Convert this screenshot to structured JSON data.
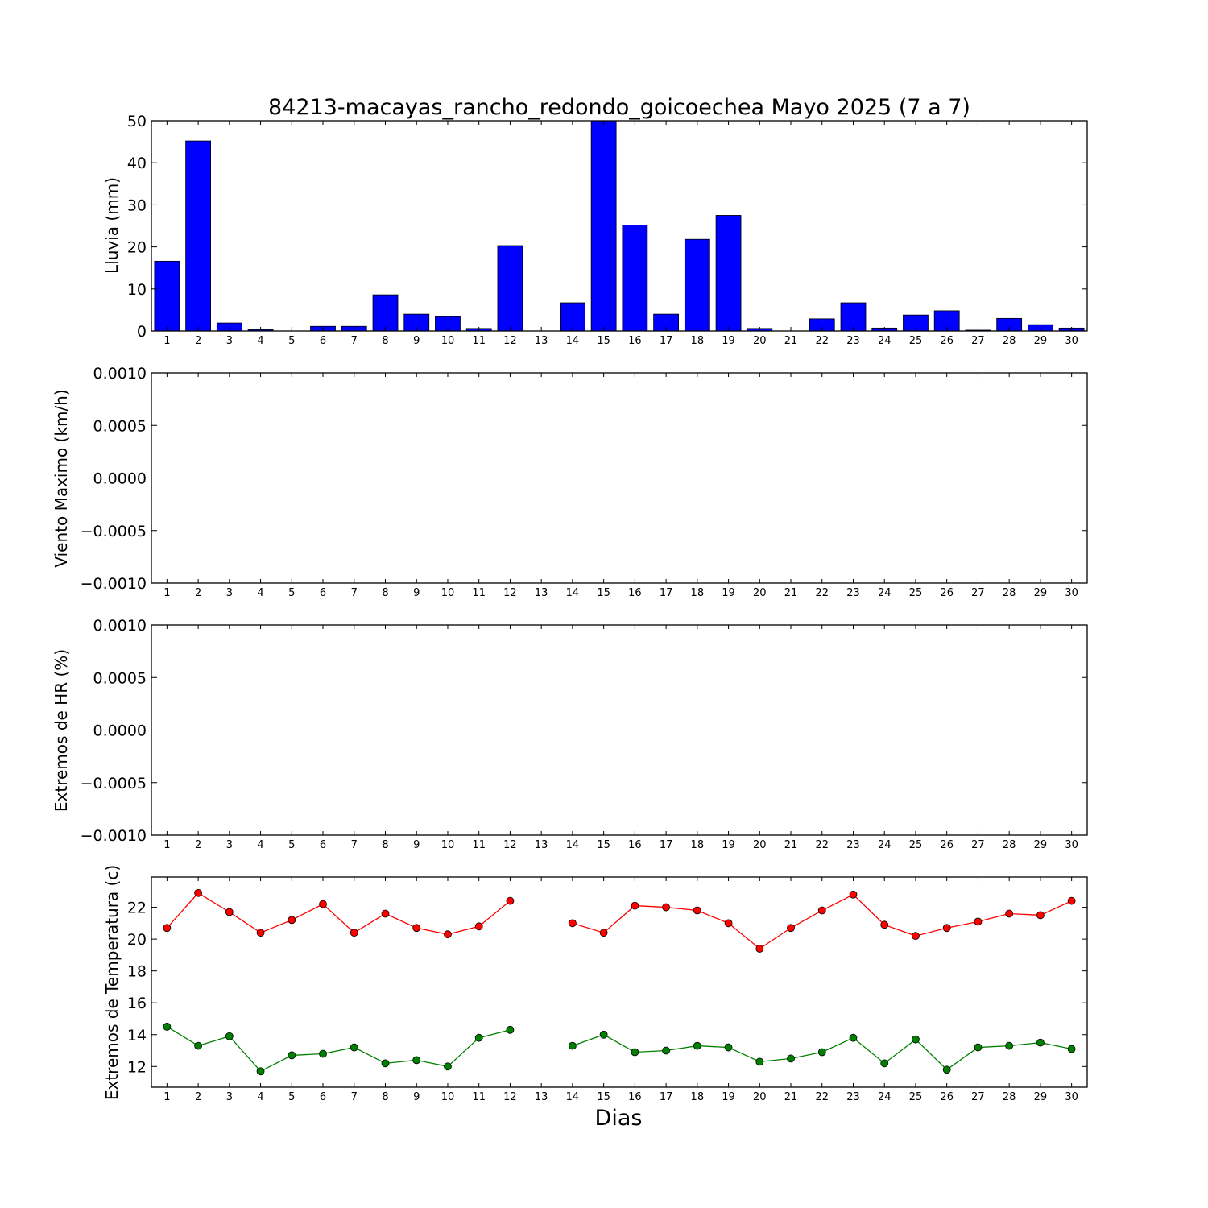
{
  "chart_data": [
    {
      "type": "bar",
      "title": "84213-macayas_rancho_redondo_goicoechea Mayo 2025  (7 a 7)",
      "ylabel": "Lluvia (mm)",
      "xlabel": "",
      "ylim": [
        0,
        50
      ],
      "yticks": [
        "0",
        "10",
        "20",
        "30",
        "40",
        "50"
      ],
      "categories": [
        "1",
        "2",
        "3",
        "4",
        "5",
        "6",
        "7",
        "8",
        "9",
        "10",
        "11",
        "12",
        "13",
        "14",
        "15",
        "16",
        "17",
        "18",
        "19",
        "20",
        "21",
        "22",
        "23",
        "24",
        "25",
        "26",
        "27",
        "28",
        "29",
        "30"
      ],
      "values": [
        16.6,
        45.2,
        1.9,
        0.3,
        0,
        1.1,
        1.1,
        8.6,
        4.0,
        3.4,
        0.6,
        20.3,
        0,
        6.7,
        50.0,
        25.2,
        4.0,
        21.8,
        27.5,
        0.6,
        0,
        2.9,
        6.7,
        0.7,
        3.8,
        4.8,
        0.2,
        3.0,
        1.5,
        0.7
      ],
      "color": "#0000ff",
      "grid": false
    },
    {
      "type": "line",
      "ylabel": "Viento Maximo (km/h)",
      "ylim": [
        -0.001,
        0.001
      ],
      "yticks": [
        "0.0010",
        "0.0005",
        "0.0000",
        "−0.0005",
        "−0.0010"
      ],
      "categories": [
        "1",
        "2",
        "3",
        "4",
        "5",
        "6",
        "7",
        "8",
        "9",
        "10",
        "11",
        "12",
        "13",
        "14",
        "15",
        "16",
        "17",
        "18",
        "19",
        "20",
        "21",
        "22",
        "23",
        "24",
        "25",
        "26",
        "27",
        "28",
        "29",
        "30"
      ],
      "series": [],
      "grid": false
    },
    {
      "type": "line",
      "ylabel": "Extremos de HR (%)",
      "ylim": [
        -0.001,
        0.001
      ],
      "yticks": [
        "0.0010",
        "0.0005",
        "0.0000",
        "−0.0005",
        "−0.0010"
      ],
      "categories": [
        "1",
        "2",
        "3",
        "4",
        "5",
        "6",
        "7",
        "8",
        "9",
        "10",
        "11",
        "12",
        "13",
        "14",
        "15",
        "16",
        "17",
        "18",
        "19",
        "20",
        "21",
        "22",
        "23",
        "24",
        "25",
        "26",
        "27",
        "28",
        "29",
        "30"
      ],
      "series": [],
      "grid": false
    },
    {
      "type": "line",
      "ylabel": "Extremos de Temperatura (c)",
      "xlabel": "Dias",
      "ylim": [
        10.7,
        23.9
      ],
      "yticks": [
        "12",
        "14",
        "16",
        "18",
        "20",
        "22"
      ],
      "categories": [
        "1",
        "2",
        "3",
        "4",
        "5",
        "6",
        "7",
        "8",
        "9",
        "10",
        "11",
        "12",
        "13",
        "14",
        "15",
        "16",
        "17",
        "18",
        "19",
        "20",
        "21",
        "22",
        "23",
        "24",
        "25",
        "26",
        "27",
        "28",
        "29",
        "30"
      ],
      "series": [
        {
          "color": "#ff0000",
          "values": [
            20.7,
            22.9,
            21.7,
            20.4,
            21.2,
            22.2,
            20.4,
            21.6,
            20.7,
            20.3,
            20.8,
            22.4,
            null,
            21.0,
            20.4,
            22.1,
            22.0,
            21.8,
            21.0,
            19.4,
            20.7,
            21.8,
            22.8,
            20.9,
            20.2,
            20.7,
            21.1,
            21.6,
            21.5,
            22.4
          ]
        },
        {
          "color": "#008000",
          "values": [
            14.5,
            13.3,
            13.9,
            11.7,
            12.7,
            12.8,
            13.2,
            12.2,
            12.4,
            12.0,
            13.8,
            14.3,
            null,
            13.3,
            14.0,
            12.9,
            13.0,
            13.3,
            13.2,
            12.3,
            12.5,
            12.9,
            13.8,
            12.2,
            13.7,
            11.8,
            13.2,
            13.3,
            13.5,
            13.1
          ]
        }
      ],
      "grid": false
    }
  ]
}
